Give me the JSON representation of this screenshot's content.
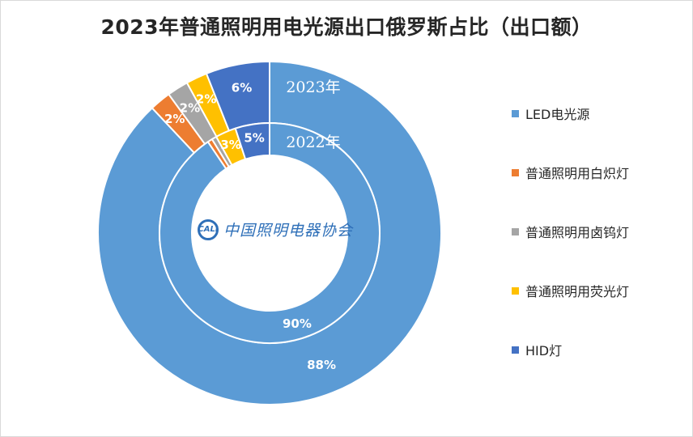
{
  "chart_data": {
    "type": "donut",
    "title": "2023年普通照明用电光源出口俄罗斯占比（出口额）",
    "categories": [
      "LED电光源",
      "普通照明用白炽灯",
      "普通照明用卤钨灯",
      "普通照明用荧光灯",
      "HID灯"
    ],
    "colors": [
      "#5b9bd5",
      "#ed7d31",
      "#a5a5a5",
      "#ffc000",
      "#4472c4"
    ],
    "series": [
      {
        "name": "2023年",
        "ring": "outer",
        "values": [
          88,
          2,
          2,
          2,
          6
        ],
        "labels": [
          "88%",
          "2%",
          "2%",
          "2%",
          "6%"
        ]
      },
      {
        "name": "2022年",
        "ring": "inner",
        "values": [
          90,
          0.7,
          0.7,
          3,
          5
        ],
        "labels": [
          "90%",
          "",
          "",
          "3%",
          "5%"
        ]
      }
    ],
    "legend_position": "right"
  },
  "watermark": {
    "logo": "CALI",
    "text": "中国照明电器协会"
  }
}
